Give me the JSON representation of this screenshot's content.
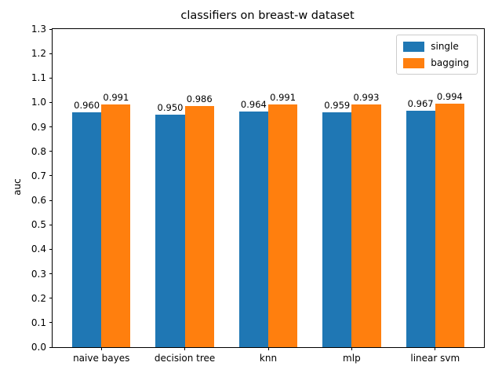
{
  "chart_data": {
    "type": "bar",
    "title": "classifiers on breast-w dataset",
    "xlabel": "",
    "ylabel": "auc",
    "categories": [
      "naive bayes",
      "decision tree",
      "knn",
      "mlp",
      "linear svm"
    ],
    "series": [
      {
        "name": "single",
        "color": "#1f77b4",
        "values": [
          0.96,
          0.95,
          0.964,
          0.959,
          0.967
        ]
      },
      {
        "name": "bagging",
        "color": "#ff7f0e",
        "values": [
          0.991,
          0.986,
          0.991,
          0.993,
          0.994
        ]
      }
    ],
    "bar_value_label_decimals": 3,
    "ylim": [
      0.0,
      1.3
    ],
    "ytick_step": 0.1,
    "bar_width_units": 0.35,
    "legend_position": "upper right",
    "grid": false,
    "colors": {
      "spine": "#000000",
      "text": "#000000",
      "legend_border": "#cccccc",
      "background": "#ffffff"
    }
  }
}
